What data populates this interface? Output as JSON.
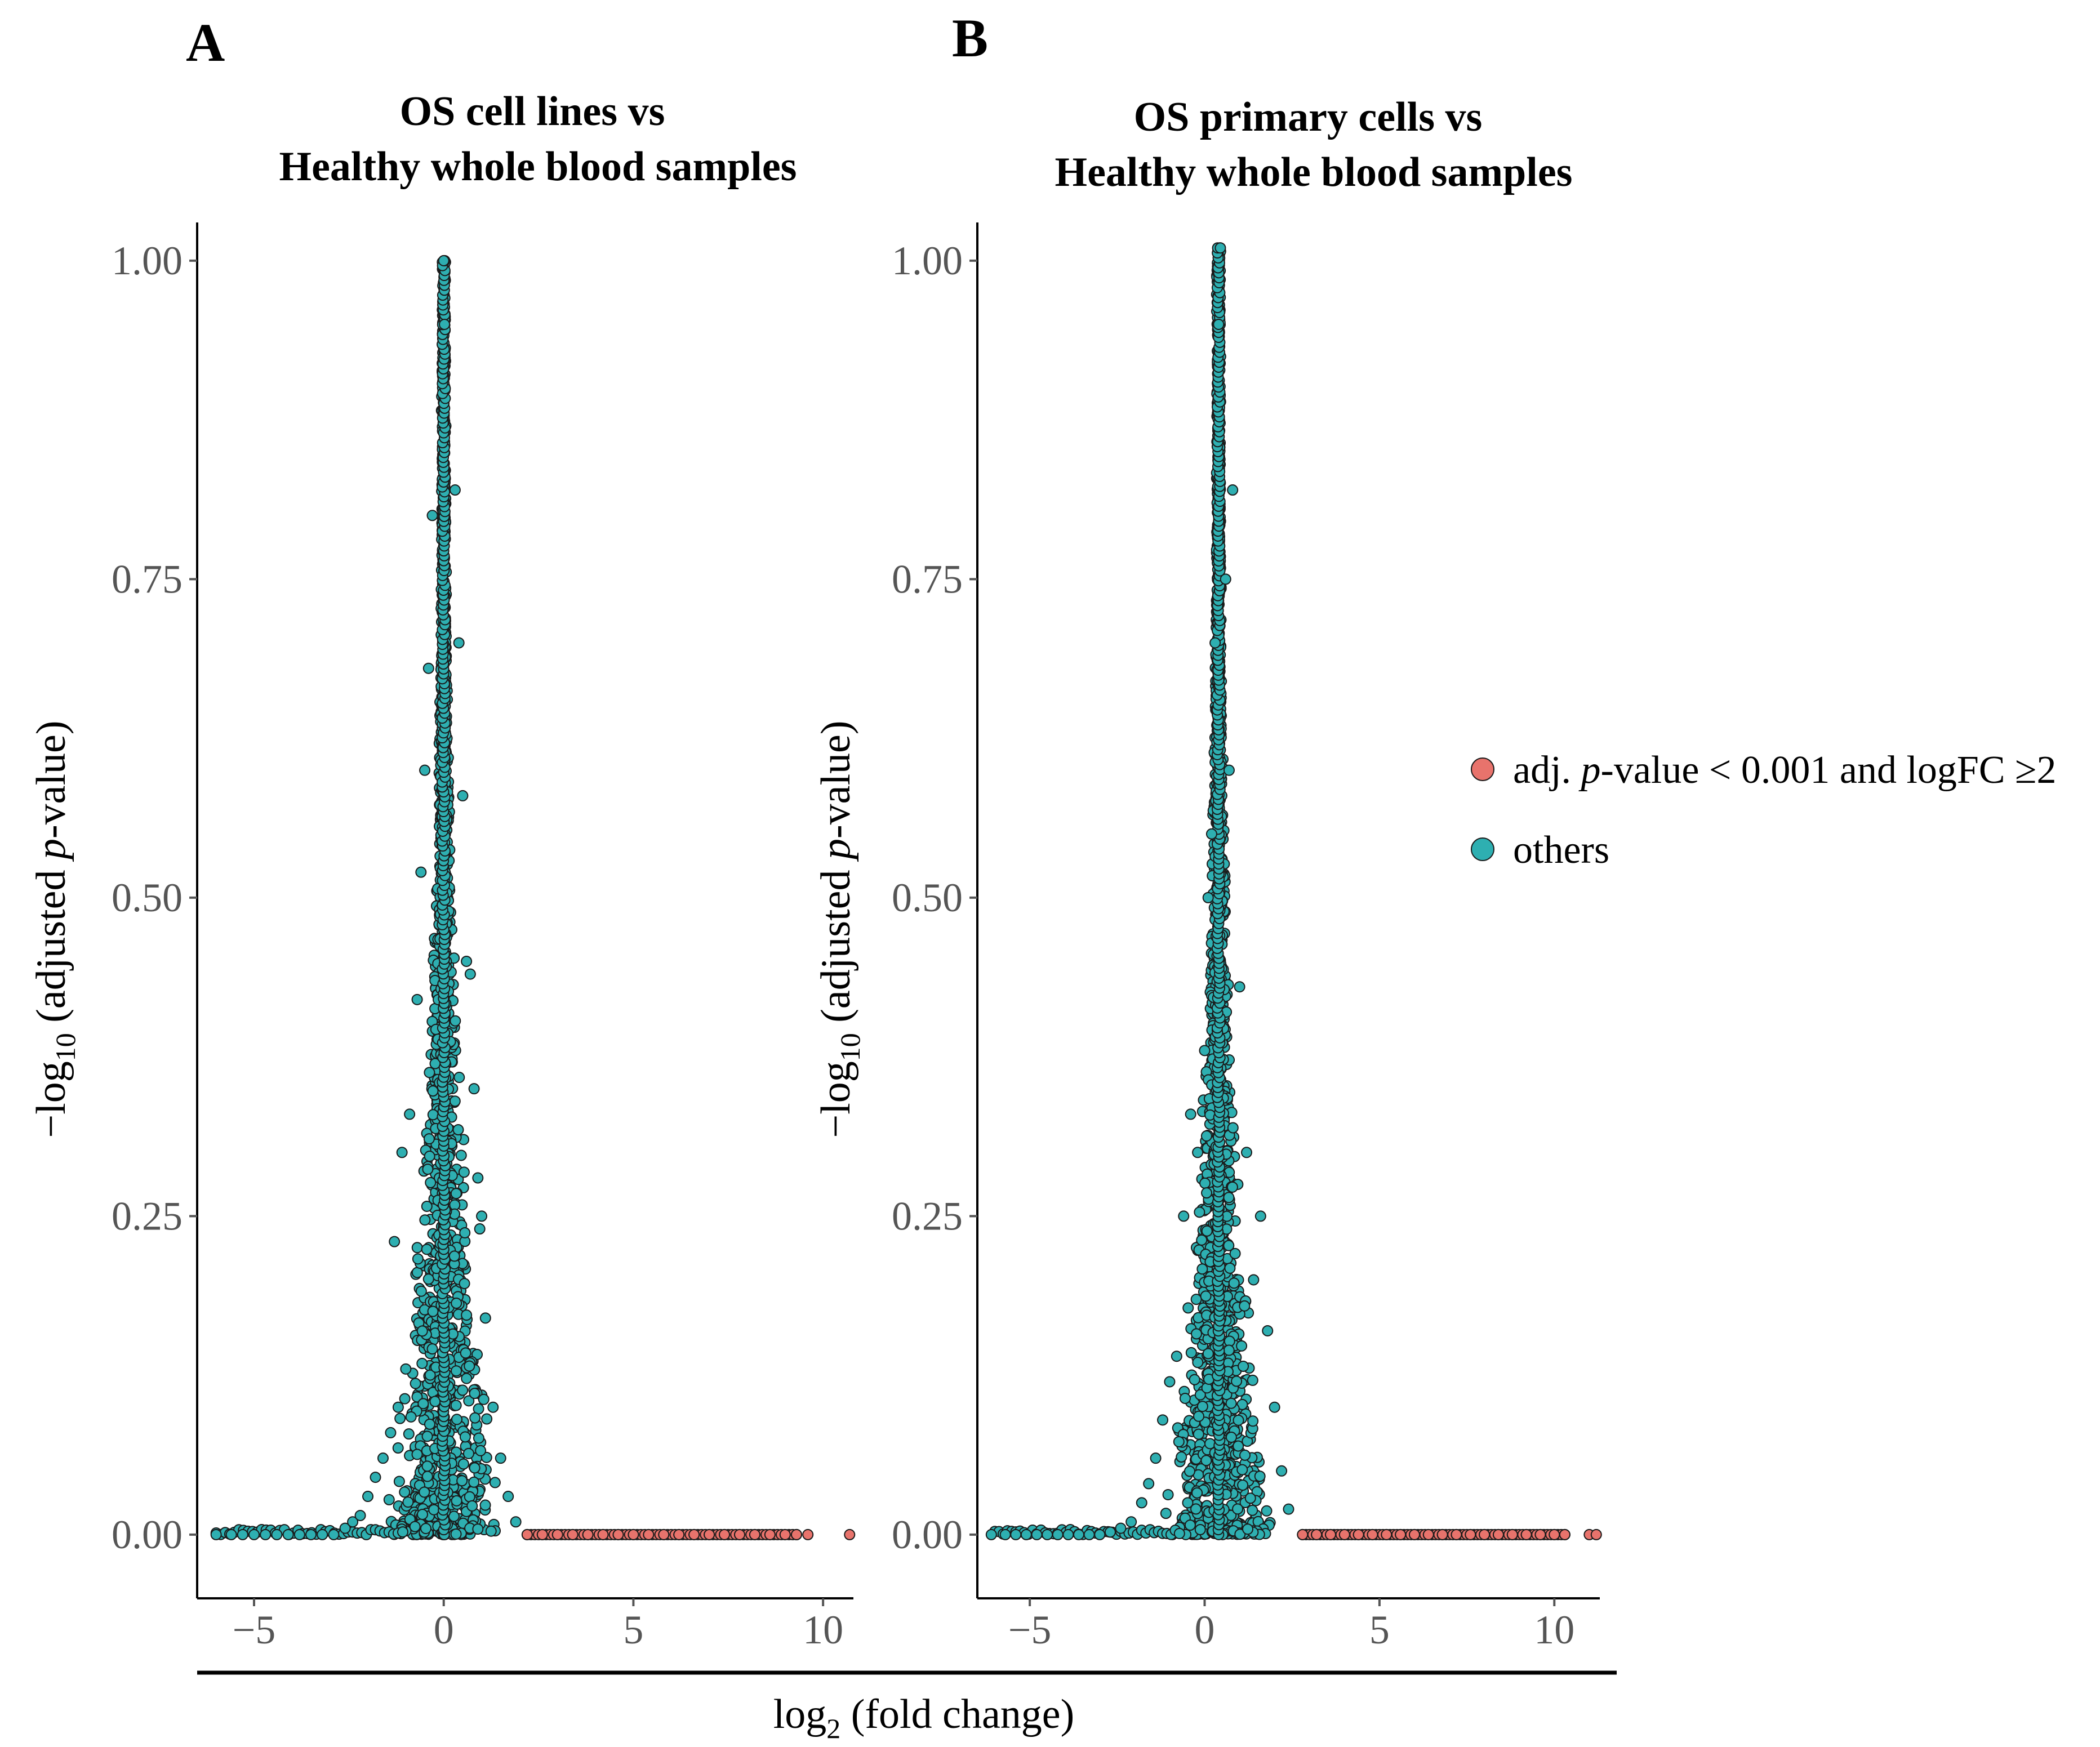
{
  "figure": {
    "shared_xlabel_main": "log",
    "shared_xlabel_sub": "2",
    "shared_xlabel_rest": " (fold change)",
    "ylabel_prefix": "−log",
    "ylabel_sub": "10",
    "ylabel_mid": " (adjusted ",
    "ylabel_italic": "p",
    "ylabel_suffix": "-value)"
  },
  "legend": {
    "items": [
      {
        "pre": "adj. ",
        "italic": "p",
        "post": "-value < 0.001 and logFC ≥2",
        "color": "#e8736c"
      },
      {
        "pre": "others",
        "italic": "",
        "post": "",
        "color": "#2eafb1"
      }
    ]
  },
  "colors": {
    "significant": "#e8736c",
    "others": "#2eafb1",
    "point_edge": "#1a1a1a"
  },
  "chart_data": [
    {
      "type": "scatter",
      "panel": "A",
      "title_line1": "OS cell lines vs",
      "title_line2": "Healthy whole blood samples",
      "xlabel": "log2 (fold change)",
      "ylabel": "−log10 (adjusted p-value)",
      "xlim": [
        -6.5,
        10.8
      ],
      "ylim": [
        -0.05,
        1.03
      ],
      "xticks": [
        -5,
        0,
        5,
        10
      ],
      "xtick_labels": [
        "−5",
        "0",
        "5",
        "10"
      ],
      "yticks": [
        0,
        0.25,
        0.5,
        0.75,
        1.0
      ],
      "ytick_labels": [
        "0.00",
        "0.25",
        "0.50",
        "0.75",
        "1.00"
      ],
      "series": [
        {
          "name": "others",
          "description": "volcano spike centred at log2FC 0, reaching -log10 adj p = 1.00",
          "center_x": 0,
          "peak_y": 1.0,
          "x": [
            -6.0,
            -5.6,
            -5.3,
            -5.0,
            -4.7,
            -4.4,
            -4.1,
            -3.8,
            -3.5,
            -3.2,
            -2.9,
            -2.6,
            -2.4,
            -2.2,
            -2.0,
            -1.8,
            -1.6,
            -1.4,
            -1.2,
            -1.0,
            0.95,
            1.1,
            1.3,
            1.5,
            1.7,
            1.9,
            -1.3,
            -1.1,
            -0.9,
            -0.7,
            0.7,
            0.9,
            1.0,
            0.8,
            -0.6,
            -0.5,
            0.5,
            0.6,
            -0.4,
            0.4,
            -0.3,
            0.3,
            0.0,
            0.02
          ],
          "y": [
            0,
            0,
            0,
            0,
            0,
            0,
            0,
            0,
            0,
            0,
            0,
            0.005,
            0.01,
            0.015,
            0.03,
            0.045,
            0.06,
            0.08,
            0.1,
            0.13,
            0.24,
            0.17,
            0.1,
            0.06,
            0.03,
            0.01,
            0.23,
            0.3,
            0.33,
            0.42,
            0.44,
            0.28,
            0.25,
            0.35,
            0.52,
            0.6,
            0.58,
            0.45,
            0.68,
            0.7,
            0.8,
            0.82,
            1.0,
            0.95
          ]
        },
        {
          "name": "adj. p-value < 0.001 and logFC ≥2",
          "x": [
            2.2,
            2.6,
            3.0,
            3.4,
            3.8,
            4.2,
            4.6,
            5.0,
            5.4,
            5.8,
            6.2,
            6.6,
            7.0,
            7.4,
            7.8,
            8.2,
            8.6,
            9.0,
            9.3,
            9.6,
            10.7
          ],
          "y": [
            0,
            0,
            0,
            0,
            0,
            0,
            0,
            0,
            0,
            0,
            0,
            0,
            0,
            0,
            0,
            0,
            0,
            0,
            0,
            0,
            0
          ]
        }
      ]
    },
    {
      "type": "scatter",
      "panel": "B",
      "title_line1": "OS primary cells vs",
      "title_line2": "Healthy whole blood samples",
      "xlabel": "log2 (fold change)",
      "ylabel": "−log10 (adjusted p-value)",
      "xlim": [
        -6.5,
        11.3
      ],
      "ylim": [
        -0.05,
        1.03
      ],
      "xticks": [
        -5,
        0,
        5,
        10
      ],
      "xtick_labels": [
        "−5",
        "0",
        "5",
        "10"
      ],
      "yticks": [
        0,
        0.25,
        0.5,
        0.75,
        1.0
      ],
      "ytick_labels": [
        "0.00",
        "0.25",
        "0.50",
        "0.75",
        "1.00"
      ],
      "series": [
        {
          "name": "others",
          "description": "volcano spike centred near log2FC 0.4, reaching -log10 adj p = 1.01",
          "center_x": 0.4,
          "peak_y": 1.01,
          "x": [
            -6.1,
            -5.7,
            -5.4,
            -5.1,
            -4.8,
            -4.5,
            -4.2,
            -3.9,
            -3.6,
            -3.3,
            -3.0,
            -2.7,
            -2.4,
            -2.1,
            -1.8,
            -1.6,
            -1.4,
            -1.2,
            -1.0,
            -0.8,
            1.6,
            1.8,
            2.0,
            2.2,
            2.4,
            -0.6,
            -0.4,
            -0.2,
            0.0,
            1.0,
            1.2,
            1.4,
            0.1,
            0.2,
            0.7,
            0.8,
            0.3,
            0.6,
            0.4,
            0.45
          ],
          "y": [
            0,
            0,
            0,
            0,
            0,
            0,
            0,
            0,
            0,
            0,
            0,
            0.002,
            0.005,
            0.01,
            0.025,
            0.04,
            0.06,
            0.09,
            0.12,
            0.14,
            0.25,
            0.16,
            0.1,
            0.05,
            0.02,
            0.25,
            0.33,
            0.3,
            0.38,
            0.43,
            0.3,
            0.2,
            0.5,
            0.55,
            0.6,
            0.82,
            0.7,
            0.75,
            0.95,
            1.01
          ]
        },
        {
          "name": "adj. p-value < 0.001 and logFC ≥2",
          "x": [
            2.8,
            3.2,
            3.6,
            4.0,
            4.4,
            4.8,
            5.2,
            5.6,
            6.0,
            6.4,
            6.8,
            7.2,
            7.6,
            8.0,
            8.4,
            8.8,
            9.2,
            9.6,
            10.0,
            10.3,
            11.0,
            11.2
          ],
          "y": [
            0,
            0,
            0,
            0,
            0,
            0,
            0,
            0,
            0,
            0,
            0,
            0,
            0,
            0,
            0,
            0,
            0,
            0,
            0,
            0,
            0,
            0
          ]
        }
      ]
    }
  ]
}
